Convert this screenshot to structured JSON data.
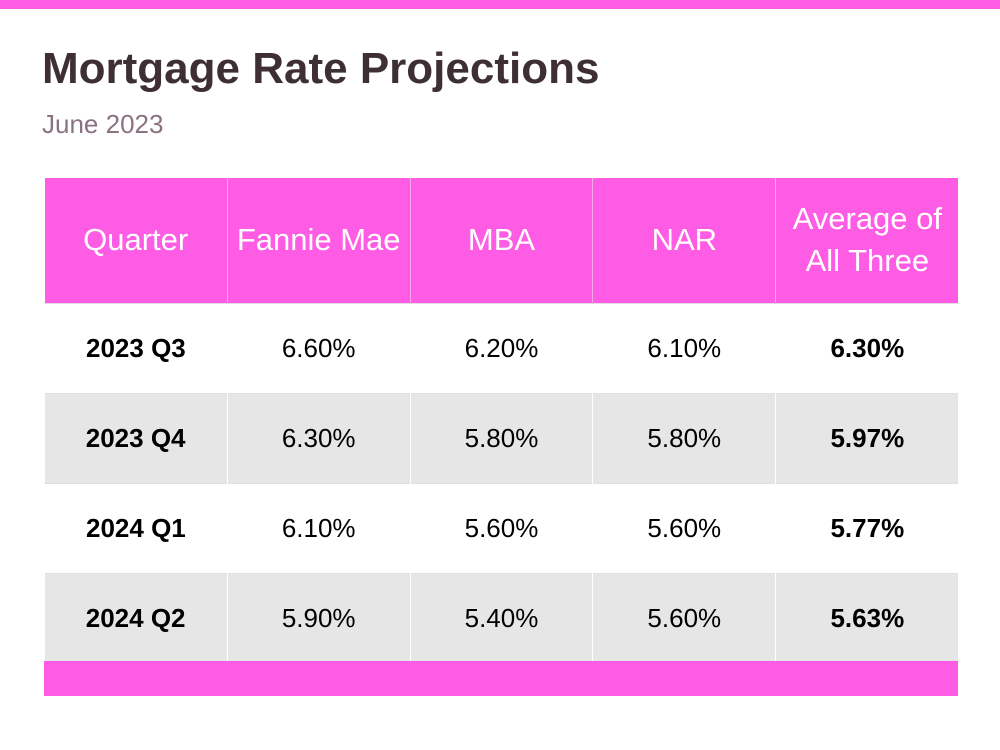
{
  "title": "Mortgage Rate Projections",
  "subtitle": "June 2023",
  "colors": {
    "accent": "#ff5ce6",
    "title": "#3d2f33",
    "subtitle": "#8a7280",
    "alt_row": "#e6e6e6"
  },
  "chart_data": {
    "type": "table",
    "title": "Mortgage Rate Projections",
    "subtitle": "June 2023",
    "columns": [
      "Quarter",
      "Fannie Mae",
      "MBA",
      "NAR",
      "Average of All Three"
    ],
    "rows": [
      [
        "2023 Q3",
        "6.60%",
        "6.20%",
        "6.10%",
        "6.30%"
      ],
      [
        "2023 Q4",
        "6.30%",
        "5.80%",
        "5.80%",
        "5.97%"
      ],
      [
        "2024 Q1",
        "6.10%",
        "5.60%",
        "5.60%",
        "5.77%"
      ],
      [
        "2024 Q2",
        "5.90%",
        "5.40%",
        "5.60%",
        "5.63%"
      ]
    ]
  }
}
